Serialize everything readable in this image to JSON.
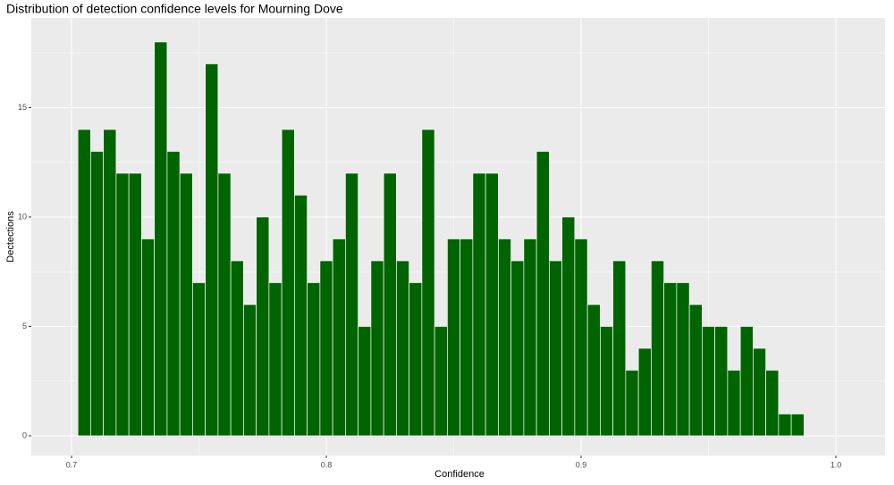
{
  "chart_data": {
    "type": "histogram",
    "title": "Distribution of detection confidence levels for Mourning Dove",
    "x_label": "Confidence",
    "y_label": "Dectections",
    "color": "#006400",
    "grid": true,
    "bins": [
      0.7025,
      0.7075,
      0.7125,
      0.7175,
      0.7225,
      0.7275,
      0.7325,
      0.7375,
      0.7425,
      0.7475,
      0.7525,
      0.7575,
      0.7625,
      0.7675,
      0.7725,
      0.7775,
      0.7825,
      0.7875,
      0.7925,
      0.7975,
      0.8025,
      0.8075,
      0.8125,
      0.8175,
      0.8225,
      0.8275,
      0.8325,
      0.8375,
      0.8425,
      0.8475,
      0.8525,
      0.8575,
      0.8625,
      0.8675,
      0.8725,
      0.8775,
      0.8825,
      0.8875,
      0.8925,
      0.8975,
      0.9025,
      0.9075,
      0.9125,
      0.9175,
      0.9225,
      0.9275,
      0.9325,
      0.9375,
      0.9425,
      0.9475,
      0.9525,
      0.9575,
      0.9625,
      0.9675,
      0.9725,
      0.9775,
      0.9825,
      0.9875
    ],
    "values": [
      14,
      13,
      14,
      12,
      12,
      9,
      18,
      13,
      12,
      7,
      17,
      12,
      8,
      6,
      10,
      7,
      14,
      11,
      7,
      8,
      9,
      12,
      5,
      8,
      12,
      8,
      7,
      14,
      5,
      9,
      9,
      12,
      12,
      9,
      8,
      9,
      13,
      8,
      10,
      9,
      6,
      5,
      8,
      3,
      4,
      8,
      7,
      7,
      6,
      5,
      5,
      3,
      5,
      4,
      3,
      1,
      1
    ],
    "xlim": [
      0.6842,
      1.0193
    ],
    "ylim": [
      -0.9,
      19.1
    ],
    "xticks": [
      0.7,
      0.8,
      0.9,
      {
        "value": 1,
        "label": "1.0"
      }
    ],
    "yticks": [
      0,
      5,
      10,
      15
    ]
  }
}
